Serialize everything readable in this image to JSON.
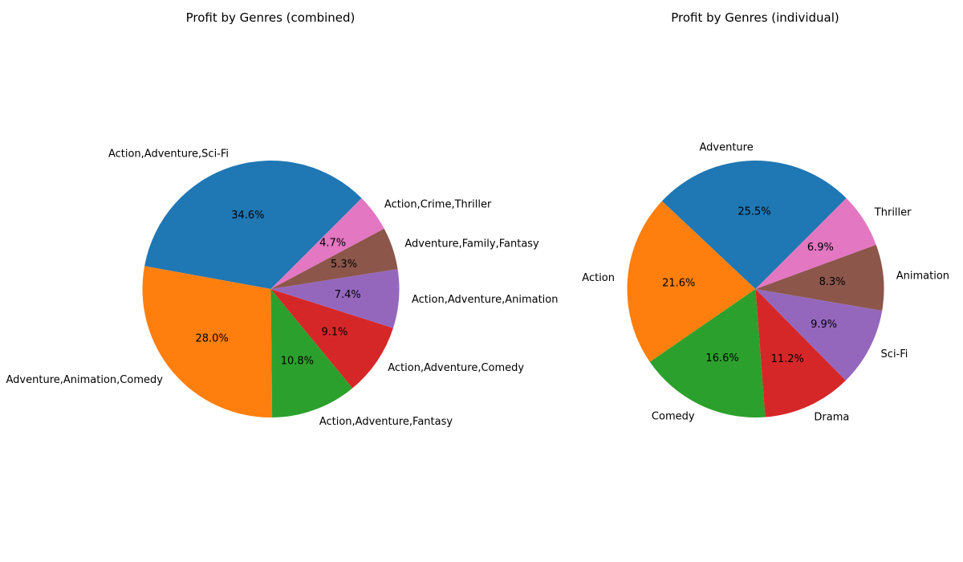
{
  "chart_data": [
    {
      "type": "pie",
      "title": "Profit by Genres (combined)",
      "start_angle_deg": 45,
      "direction": "counterclockwise",
      "labels": [
        "Action,Adventure,Sci-Fi",
        "Adventure,Animation,Comedy",
        "Action,Adventure,Fantasy",
        "Action,Adventure,Comedy",
        "Action,Adventure,Animation",
        "Adventure,Family,Fantasy",
        "Action,Crime,Thriller"
      ],
      "values": [
        34.6,
        28.0,
        10.8,
        9.1,
        7.4,
        5.3,
        4.7
      ],
      "percent_labels": [
        "34.6%",
        "28.0%",
        "10.8%",
        "9.1%",
        "7.4%",
        "5.3%",
        "4.7%"
      ],
      "colors": [
        "#1f77b4",
        "#ff7f0e",
        "#2ca02c",
        "#d62728",
        "#9467bd",
        "#8c564b",
        "#e377c2"
      ]
    },
    {
      "type": "pie",
      "title": "Profit by Genres (individual)",
      "start_angle_deg": 45,
      "direction": "counterclockwise",
      "labels": [
        "Adventure",
        "Action",
        "Comedy",
        "Drama",
        "Sci-Fi",
        "Animation",
        "Thriller"
      ],
      "values": [
        25.5,
        21.6,
        16.6,
        11.2,
        9.9,
        8.3,
        6.9
      ],
      "percent_labels": [
        "25.5%",
        "21.6%",
        "16.6%",
        "11.2%",
        "9.9%",
        "8.3%",
        "6.9%"
      ],
      "colors": [
        "#1f77b4",
        "#ff7f0e",
        "#2ca02c",
        "#d62728",
        "#9467bd",
        "#8c564b",
        "#e377c2"
      ]
    }
  ]
}
